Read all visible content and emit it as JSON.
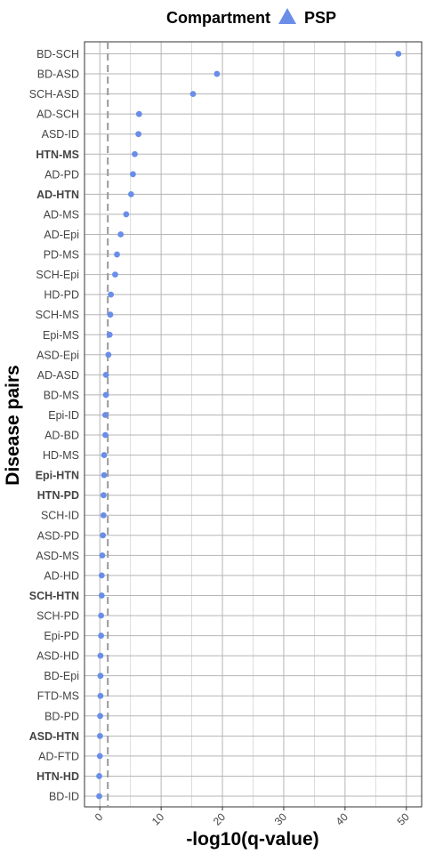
{
  "chart_data": {
    "type": "scatter",
    "legend": {
      "title": "Compartment",
      "entries": [
        {
          "name": "PSP",
          "color": "#6a8ee8",
          "shape": "triangle"
        }
      ],
      "placement": "top"
    },
    "xlabel": "-log10(q-value)",
    "ylabel": "Disease pairs",
    "xlim": [
      -2.5,
      52.5
    ],
    "xticks": [
      0,
      10,
      20,
      30,
      40,
      50
    ],
    "reference_line_x": 1.3,
    "grid": true,
    "point_color": "#6a8ee8",
    "categories": [
      "BD-SCH",
      "BD-ASD",
      "SCH-ASD",
      "AD-SCH",
      "ASD-ID",
      "HTN-MS",
      "AD-PD",
      "AD-HTN",
      "AD-MS",
      "AD-Epi",
      "PD-MS",
      "SCH-Epi",
      "HD-PD",
      "SCH-MS",
      "Epi-MS",
      "ASD-Epi",
      "AD-ASD",
      "BD-MS",
      "Epi-ID",
      "AD-BD",
      "HD-MS",
      "Epi-HTN",
      "HTN-PD",
      "SCH-ID",
      "ASD-PD",
      "ASD-MS",
      "AD-HD",
      "SCH-HTN",
      "SCH-PD",
      "Epi-PD",
      "ASD-HD",
      "BD-Epi",
      "FTD-MS",
      "BD-PD",
      "ASD-HTN",
      "AD-FTD",
      "HTN-HD",
      "BD-ID"
    ],
    "bold_categories": [
      "HTN-MS",
      "AD-HTN",
      "Epi-HTN",
      "HTN-PD",
      "SCH-HTN",
      "ASD-HTN",
      "HTN-HD"
    ],
    "values": [
      48.7,
      19.1,
      15.2,
      6.4,
      6.3,
      5.7,
      5.4,
      5.1,
      4.3,
      3.4,
      2.8,
      2.5,
      1.8,
      1.7,
      1.6,
      1.4,
      1.0,
      1.0,
      0.9,
      0.9,
      0.7,
      0.7,
      0.6,
      0.6,
      0.5,
      0.4,
      0.3,
      0.3,
      0.2,
      0.2,
      0.1,
      0.1,
      0.1,
      0.05,
      0.02,
      0.0,
      -0.1,
      -0.1
    ]
  }
}
